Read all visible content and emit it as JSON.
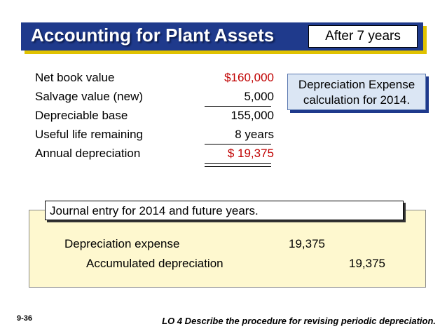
{
  "title": "Accounting for Plant Assets",
  "title_badge": "After 7 years",
  "calculation": {
    "rows": [
      {
        "label": "Net book value",
        "value": "$160,000"
      },
      {
        "label": "Salvage value (new)",
        "value": "5,000"
      },
      {
        "label": "Depreciable base",
        "value": "155,000"
      },
      {
        "label": "Useful life remaining",
        "value": "8 years"
      },
      {
        "label": "Annual depreciation",
        "value": "$  19,375"
      }
    ]
  },
  "callout": {
    "line1": "Depreciation Expense",
    "line2": "calculation for 2014."
  },
  "journal": {
    "label": "Journal entry for 2014 and future years.",
    "debit_account": "Depreciation expense",
    "debit_amount": "19,375",
    "credit_account": "Accumulated depreciation",
    "credit_amount": "19,375"
  },
  "footer": {
    "slide_number": "9-36",
    "learning_objective": "LO 4  Describe the procedure for revising periodic depreciation."
  },
  "colors": {
    "title_bg": "#1f3a8c",
    "title_shadow": "#e0c200",
    "value_red": "#c00000",
    "callout_bg": "#dbe6f4",
    "journal_bg": "#fef8cf"
  }
}
